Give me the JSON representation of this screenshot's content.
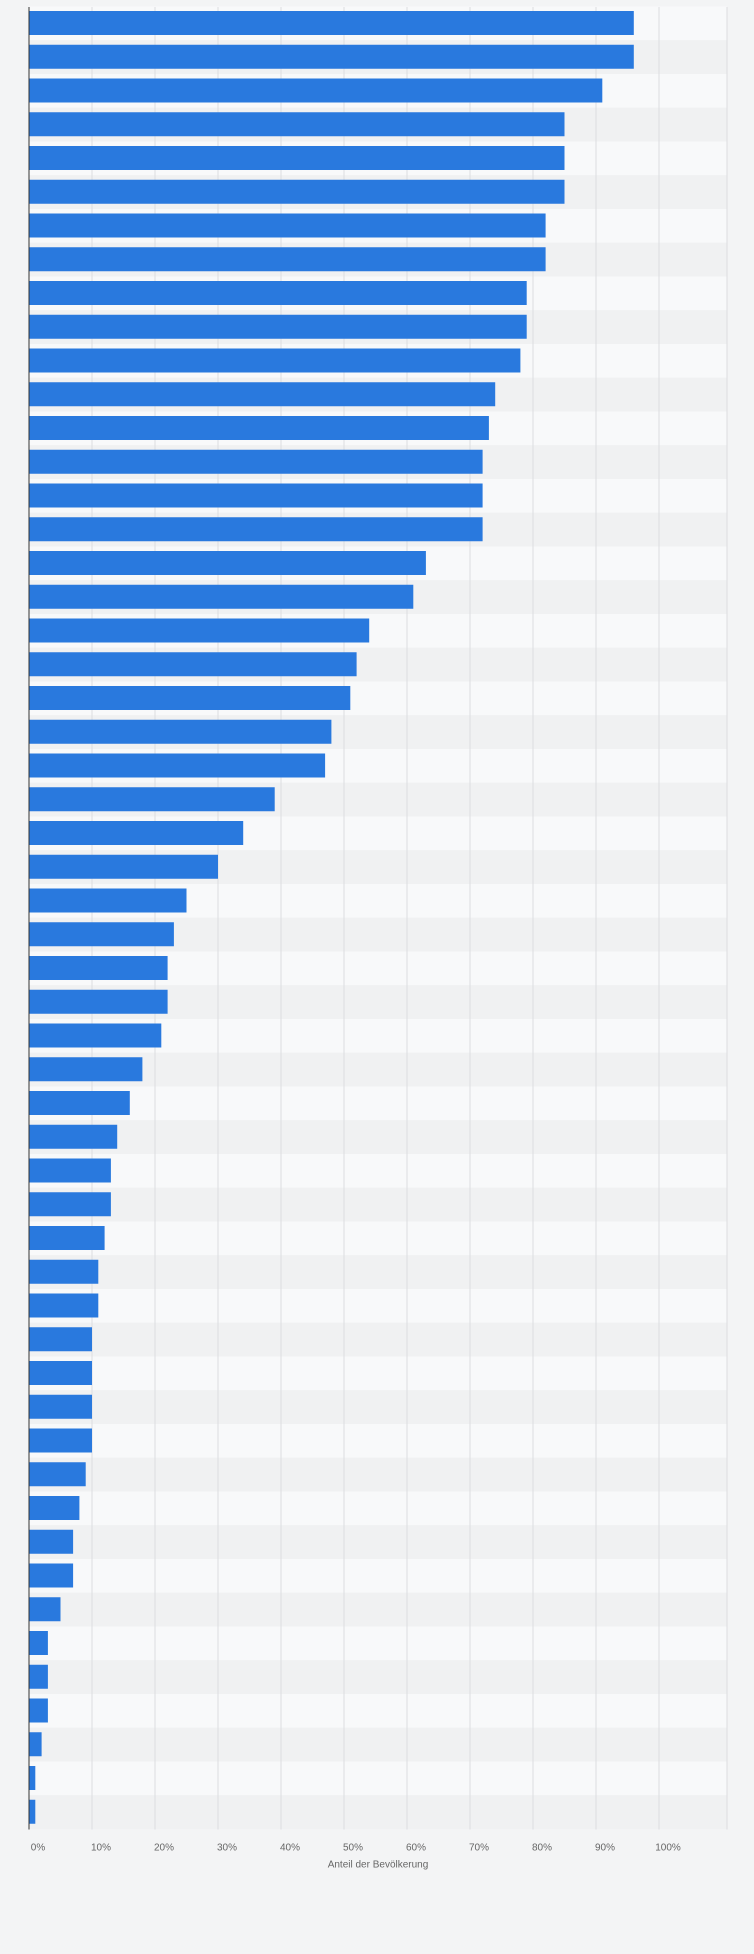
{
  "chart_data": {
    "type": "bar",
    "orientation": "horizontal",
    "xlabel": "Anteil der Bevölkerung",
    "xlim": [
      0,
      110
    ],
    "x_ticks": [
      0,
      10,
      20,
      30,
      40,
      50,
      60,
      70,
      80,
      90,
      100
    ],
    "x_tick_labels": [
      "0%",
      "10%",
      "20%",
      "30%",
      "40%",
      "50%",
      "60%",
      "70%",
      "80%",
      "90%",
      "100%"
    ],
    "values": [
      96,
      96,
      91,
      85,
      85,
      85,
      82,
      82,
      79,
      79,
      78,
      74,
      73,
      72,
      72,
      72,
      63,
      61,
      54,
      52,
      51,
      48,
      47,
      39,
      34,
      30,
      25,
      23,
      22,
      22,
      21,
      18,
      16,
      14,
      13,
      13,
      12,
      11,
      11,
      10,
      10,
      10,
      10,
      9,
      8,
      7,
      7,
      5,
      3,
      3,
      3,
      2,
      1,
      1
    ],
    "grid": true,
    "legend": "none",
    "colors": {
      "bar": "#2979de",
      "row_light": "#f8f9fa",
      "row_dark": "#f0f1f2",
      "grid": "#dcdde0",
      "axis": "#333333",
      "tick_text": "#666666",
      "background": "#f3f4f5"
    }
  }
}
